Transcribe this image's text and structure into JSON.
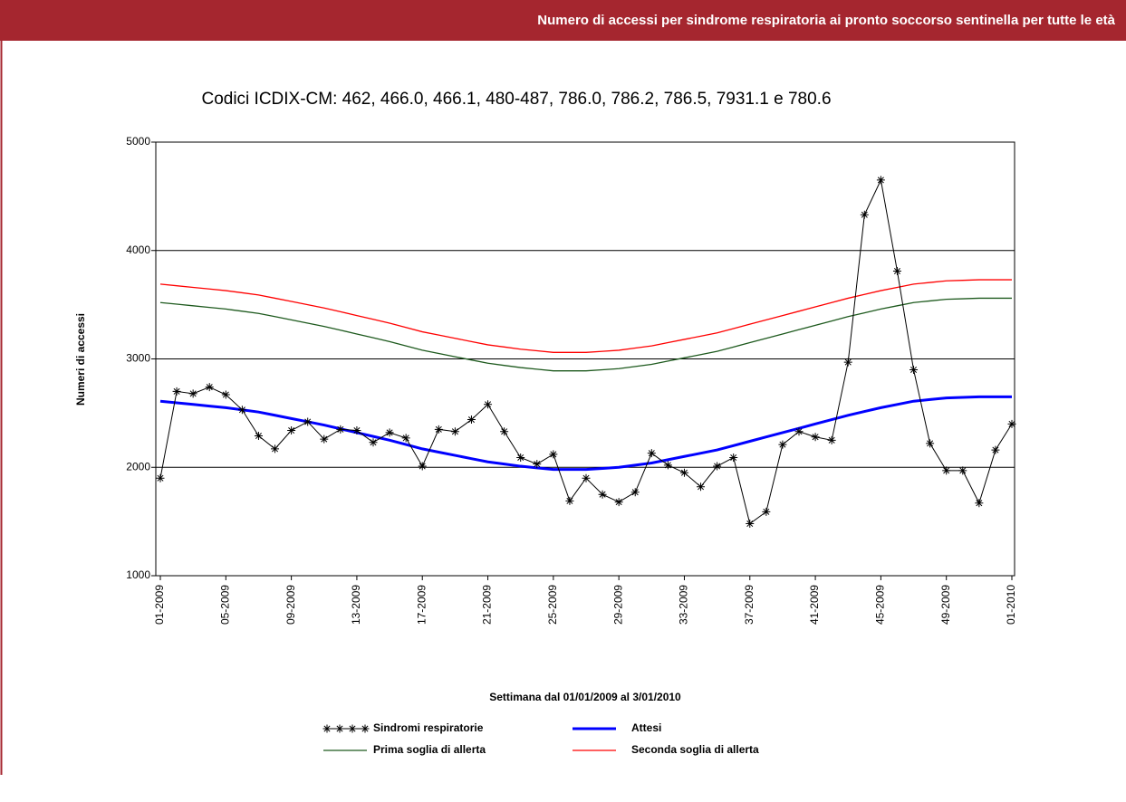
{
  "chart_data": {
    "type": "line",
    "title": "Numero di accessi per sindrome respiratoria ai pronto soccorso sentinella per tutte le età",
    "subtitle": "Codici ICDIX-CM: 462, 466.0, 466.1, 480-487, 786.0, 786.2, 786.5, 7931.1 e 780.6",
    "y_label": "Numeri di accessi",
    "x_label": "Settimana dal 01/01/2009 al 3/01/2010",
    "categories": [
      "01-2009",
      null,
      null,
      null,
      "05-2009",
      null,
      null,
      null,
      "09-2009",
      null,
      null,
      null,
      "13-2009",
      null,
      null,
      null,
      "17-2009",
      null,
      null,
      null,
      "21-2009",
      null,
      null,
      null,
      "25-2009",
      null,
      null,
      null,
      "29-2009",
      null,
      null,
      null,
      "33-2009",
      null,
      null,
      null,
      "37-2009",
      null,
      null,
      null,
      "41-2009",
      null,
      null,
      null,
      "45-2009",
      null,
      null,
      null,
      "49-2009",
      null,
      null,
      null,
      "01-2010"
    ],
    "ylim": [
      1000,
      5000
    ],
    "yticks": [
      1000,
      2000,
      3000,
      4000,
      5000
    ],
    "grid": true,
    "legend": "bottom",
    "series": [
      {
        "name": "Sindromi respiratorie",
        "color": "#000000",
        "marker": "asterisk",
        "values": [
          1900,
          2700,
          2680,
          2740,
          2670,
          2530,
          2290,
          2170,
          2340,
          2420,
          2260,
          2350,
          2340,
          2230,
          2320,
          2270,
          2010,
          2350,
          2330,
          2440,
          2580,
          2330,
          2090,
          2030,
          2120,
          1690,
          1900,
          1750,
          1680,
          1770,
          2130,
          2020,
          1950,
          1820,
          2010,
          2090,
          1480,
          1590,
          2210,
          2330,
          2280,
          2250,
          2970,
          4330,
          4650,
          3810,
          2900,
          2220,
          1970,
          1970,
          1670,
          2160,
          2400
        ]
      },
      {
        "name": "Attesi",
        "color": "#0000ff",
        "width": 3,
        "values": [
          2610,
          2595,
          2580,
          2565,
          2550,
          2530,
          2510,
          2480,
          2450,
          2420,
          2390,
          2355,
          2320,
          2285,
          2250,
          2210,
          2170,
          2140,
          2110,
          2080,
          2050,
          2030,
          2010,
          1995,
          1980,
          1980,
          1980,
          1990,
          2000,
          2020,
          2040,
          2070,
          2100,
          2130,
          2160,
          2200,
          2240,
          2280,
          2320,
          2360,
          2400,
          2440,
          2480,
          2515,
          2550,
          2580,
          2610,
          2625,
          2640,
          2645,
          2650,
          2650,
          2650
        ]
      },
      {
        "name": "Prima soglia di allerta",
        "color": "#1e5a1e",
        "width": 1.3,
        "values": [
          3520,
          3505,
          3490,
          3475,
          3460,
          3440,
          3420,
          3390,
          3360,
          3330,
          3300,
          3265,
          3230,
          3195,
          3160,
          3120,
          3080,
          3050,
          3020,
          2990,
          2960,
          2940,
          2920,
          2905,
          2890,
          2890,
          2890,
          2900,
          2910,
          2930,
          2950,
          2980,
          3010,
          3040,
          3070,
          3110,
          3150,
          3190,
          3230,
          3270,
          3310,
          3350,
          3390,
          3425,
          3460,
          3490,
          3520,
          3535,
          3550,
          3555,
          3560,
          3560,
          3560
        ]
      },
      {
        "name": "Seconda soglia di allerta",
        "color": "#ff0000",
        "width": 1.3,
        "values": [
          3690,
          3675,
          3660,
          3645,
          3630,
          3610,
          3590,
          3560,
          3530,
          3500,
          3470,
          3435,
          3400,
          3365,
          3330,
          3290,
          3250,
          3220,
          3190,
          3160,
          3130,
          3110,
          3090,
          3075,
          3060,
          3060,
          3060,
          3070,
          3080,
          3100,
          3120,
          3150,
          3180,
          3210,
          3240,
          3280,
          3320,
          3360,
          3400,
          3440,
          3480,
          3520,
          3560,
          3595,
          3630,
          3660,
          3690,
          3705,
          3720,
          3725,
          3730,
          3730,
          3730
        ]
      }
    ]
  }
}
